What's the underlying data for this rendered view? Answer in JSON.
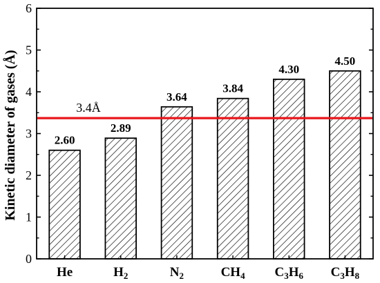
{
  "chart_data": {
    "type": "bar",
    "title": "",
    "xlabel": "",
    "ylabel": "Kinetic diameter of gases (Å)",
    "ylim": [
      0,
      6
    ],
    "yticks": [
      0,
      1,
      2,
      3,
      4,
      5,
      6
    ],
    "grid": false,
    "categories": [
      {
        "main": "He",
        "parts": [
          {
            "t": "He",
            "sub": false
          }
        ]
      },
      {
        "main": "H2",
        "parts": [
          {
            "t": "H",
            "sub": false
          },
          {
            "t": "2",
            "sub": true
          }
        ]
      },
      {
        "main": "N2",
        "parts": [
          {
            "t": "N",
            "sub": false
          },
          {
            "t": "2",
            "sub": true
          }
        ]
      },
      {
        "main": "CH4",
        "parts": [
          {
            "t": "CH",
            "sub": false
          },
          {
            "t": "4",
            "sub": true
          }
        ]
      },
      {
        "main": "C3H6",
        "parts": [
          {
            "t": "C",
            "sub": false
          },
          {
            "t": "3",
            "sub": true
          },
          {
            "t": "H",
            "sub": false
          },
          {
            "t": "6",
            "sub": true
          }
        ]
      },
      {
        "main": "C3H8",
        "parts": [
          {
            "t": "C",
            "sub": false
          },
          {
            "t": "3",
            "sub": true
          },
          {
            "t": "H",
            "sub": false
          },
          {
            "t": "8",
            "sub": true
          }
        ]
      }
    ],
    "values": [
      2.6,
      2.89,
      3.64,
      3.84,
      4.3,
      4.5
    ],
    "value_labels": [
      "2.60",
      "2.89",
      "3.64",
      "3.84",
      "4.30",
      "4.50"
    ],
    "reference_line": {
      "value": 3.37,
      "label": "3.4Å",
      "color": "#e8161b"
    },
    "bar_fill": "hatched",
    "bar_edge_color": "#000000"
  }
}
